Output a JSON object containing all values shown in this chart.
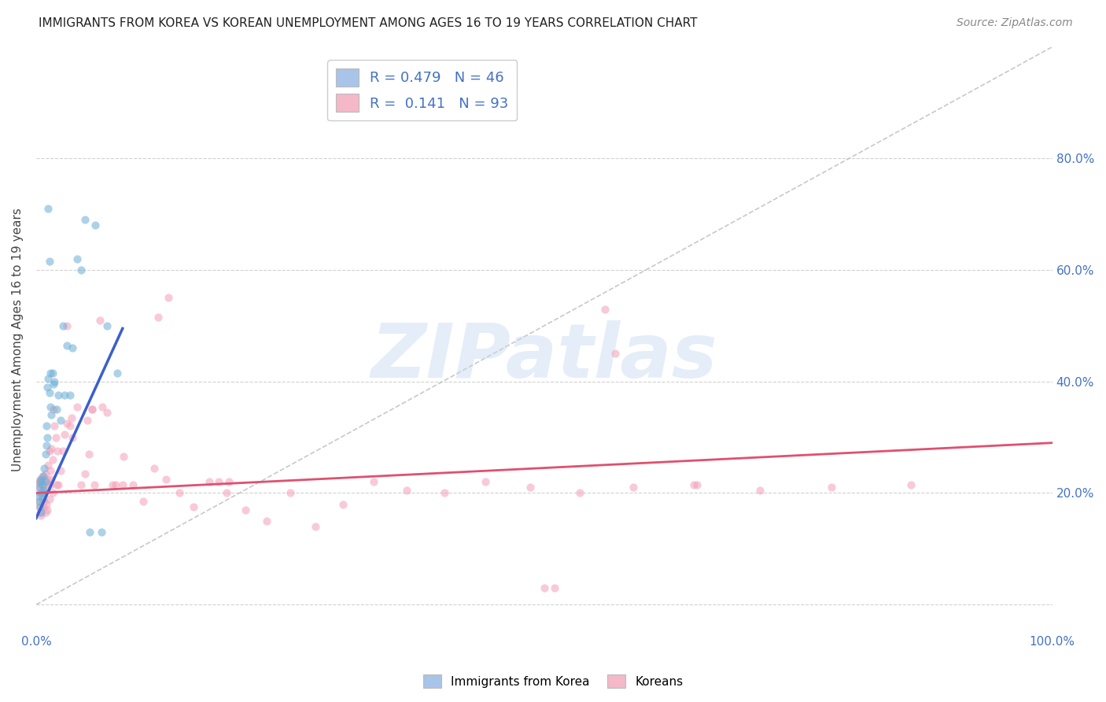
{
  "title": "IMMIGRANTS FROM KOREA VS KOREAN UNEMPLOYMENT AMONG AGES 16 TO 19 YEARS CORRELATION CHART",
  "source": "Source: ZipAtlas.com",
  "ylabel": "Unemployment Among Ages 16 to 19 years",
  "xlim": [
    0,
    1.0
  ],
  "ylim": [
    -0.05,
    1.0
  ],
  "xtick_positions": [
    0.0,
    1.0
  ],
  "xtick_labels": [
    "0.0%",
    "100.0%"
  ],
  "ytick_positions": [
    0.2,
    0.4,
    0.6,
    0.8
  ],
  "ytick_labels_right": [
    "20.0%",
    "40.0%",
    "60.0%",
    "80.0%"
  ],
  "grid_yticks": [
    0.0,
    0.2,
    0.4,
    0.6,
    0.8
  ],
  "legend_entries": [
    {
      "label": "Immigrants from Korea",
      "color": "#a8c4e8",
      "R": "0.479",
      "N": "46"
    },
    {
      "label": "Koreans",
      "color": "#f4b8c8",
      "R": "0.141",
      "N": "93"
    }
  ],
  "blue_scatter_x": [
    0.002,
    0.003,
    0.003,
    0.004,
    0.004,
    0.005,
    0.005,
    0.005,
    0.006,
    0.006,
    0.007,
    0.007,
    0.008,
    0.008,
    0.009,
    0.009,
    0.01,
    0.01,
    0.011,
    0.011,
    0.012,
    0.013,
    0.014,
    0.015,
    0.016,
    0.017,
    0.018,
    0.02,
    0.022,
    0.024,
    0.026,
    0.028,
    0.03,
    0.033,
    0.036,
    0.04,
    0.044,
    0.048,
    0.053,
    0.058,
    0.064,
    0.07,
    0.08,
    0.012,
    0.013,
    0.014
  ],
  "blue_scatter_y": [
    0.195,
    0.185,
    0.21,
    0.175,
    0.22,
    0.165,
    0.225,
    0.2,
    0.19,
    0.215,
    0.205,
    0.23,
    0.245,
    0.2,
    0.27,
    0.22,
    0.285,
    0.32,
    0.3,
    0.39,
    0.405,
    0.38,
    0.355,
    0.34,
    0.415,
    0.395,
    0.4,
    0.35,
    0.375,
    0.33,
    0.5,
    0.375,
    0.465,
    0.375,
    0.46,
    0.62,
    0.6,
    0.69,
    0.13,
    0.68,
    0.13,
    0.5,
    0.415,
    0.71,
    0.615,
    0.415
  ],
  "pink_scatter_x": [
    0.001,
    0.002,
    0.002,
    0.003,
    0.003,
    0.004,
    0.004,
    0.005,
    0.005,
    0.006,
    0.006,
    0.007,
    0.007,
    0.008,
    0.008,
    0.009,
    0.009,
    0.01,
    0.01,
    0.011,
    0.011,
    0.012,
    0.012,
    0.013,
    0.013,
    0.014,
    0.014,
    0.015,
    0.015,
    0.016,
    0.016,
    0.017,
    0.018,
    0.019,
    0.02,
    0.021,
    0.022,
    0.024,
    0.026,
    0.028,
    0.03,
    0.033,
    0.036,
    0.04,
    0.044,
    0.048,
    0.052,
    0.057,
    0.063,
    0.07,
    0.078,
    0.086,
    0.095,
    0.105,
    0.116,
    0.128,
    0.141,
    0.155,
    0.17,
    0.187,
    0.206,
    0.227,
    0.25,
    0.275,
    0.302,
    0.332,
    0.365,
    0.402,
    0.442,
    0.486,
    0.535,
    0.588,
    0.647,
    0.712,
    0.783,
    0.861,
    0.5,
    0.51,
    0.12,
    0.13,
    0.05,
    0.055,
    0.18,
    0.19,
    0.56,
    0.57,
    0.65,
    0.055,
    0.065,
    0.03,
    0.035,
    0.075,
    0.085
  ],
  "pink_scatter_y": [
    0.2,
    0.185,
    0.215,
    0.175,
    0.22,
    0.165,
    0.225,
    0.16,
    0.215,
    0.195,
    0.23,
    0.175,
    0.215,
    0.185,
    0.225,
    0.165,
    0.235,
    0.18,
    0.205,
    0.225,
    0.17,
    0.215,
    0.25,
    0.19,
    0.275,
    0.24,
    0.215,
    0.28,
    0.225,
    0.26,
    0.2,
    0.35,
    0.32,
    0.3,
    0.215,
    0.275,
    0.215,
    0.24,
    0.275,
    0.305,
    0.5,
    0.32,
    0.3,
    0.355,
    0.215,
    0.235,
    0.27,
    0.215,
    0.51,
    0.345,
    0.215,
    0.265,
    0.215,
    0.185,
    0.245,
    0.225,
    0.2,
    0.175,
    0.22,
    0.2,
    0.17,
    0.15,
    0.2,
    0.14,
    0.18,
    0.22,
    0.205,
    0.2,
    0.22,
    0.21,
    0.2,
    0.21,
    0.215,
    0.205,
    0.21,
    0.215,
    0.03,
    0.03,
    0.515,
    0.55,
    0.33,
    0.35,
    0.22,
    0.22,
    0.53,
    0.45,
    0.215,
    0.35,
    0.355,
    0.325,
    0.335,
    0.215,
    0.215
  ],
  "blue_line_x": [
    0.0,
    0.085
  ],
  "blue_line_y": [
    0.155,
    0.495
  ],
  "pink_line_x": [
    0.0,
    1.0
  ],
  "pink_line_y": [
    0.2,
    0.29
  ],
  "diag_line_x": [
    0.0,
    1.0
  ],
  "diag_line_y": [
    0.0,
    1.0
  ],
  "watermark_text": "ZIPatlas",
  "bg_color": "#ffffff",
  "grid_color": "#cccccc",
  "scatter_alpha": 0.55,
  "scatter_size": 55,
  "blue_color": "#6baed6",
  "pink_color": "#f4a0b8",
  "blue_line_color": "#3a5fcd",
  "pink_line_color": "#e05070",
  "blue_legend_color": "#a8c4e8",
  "pink_legend_color": "#f4b8c8"
}
